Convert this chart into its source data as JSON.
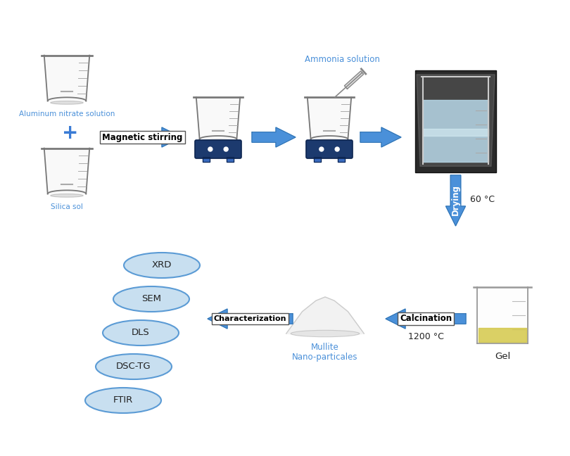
{
  "bg_color": "#ffffff",
  "arrow_color": "#4A90D9",
  "arrow_color_dark": "#2E6FAA",
  "ellipse_fill": "#C8DFF0",
  "ellipse_edge": "#5B9BD5",
  "text_color_blue": "#4A90D9",
  "text_color_black": "#222222",
  "top_row_labels": {
    "aluminum": "Aluminum nitrate solution",
    "plus": "+",
    "silica": "Silica sol",
    "magnetic": "Magnetic stirring",
    "ammonia": "Ammonia solution",
    "drying": "Drying",
    "drying_temp": "60 °C"
  },
  "bottom_row_labels": {
    "gel": "Gel",
    "calcination": "Calcination",
    "calc_temp": "1200 °C",
    "mullite1": "Mullite",
    "mullite2": "Nano-particales",
    "characterization": "Characterization"
  },
  "ellipses": [
    "XRD",
    "SEM",
    "DLS",
    "DSC-TG",
    "FTIR"
  ],
  "ellipse_offsets_x": [
    20,
    5,
    -10,
    -20,
    -35
  ],
  "figsize": [
    8.1,
    6.48
  ],
  "dpi": 100
}
